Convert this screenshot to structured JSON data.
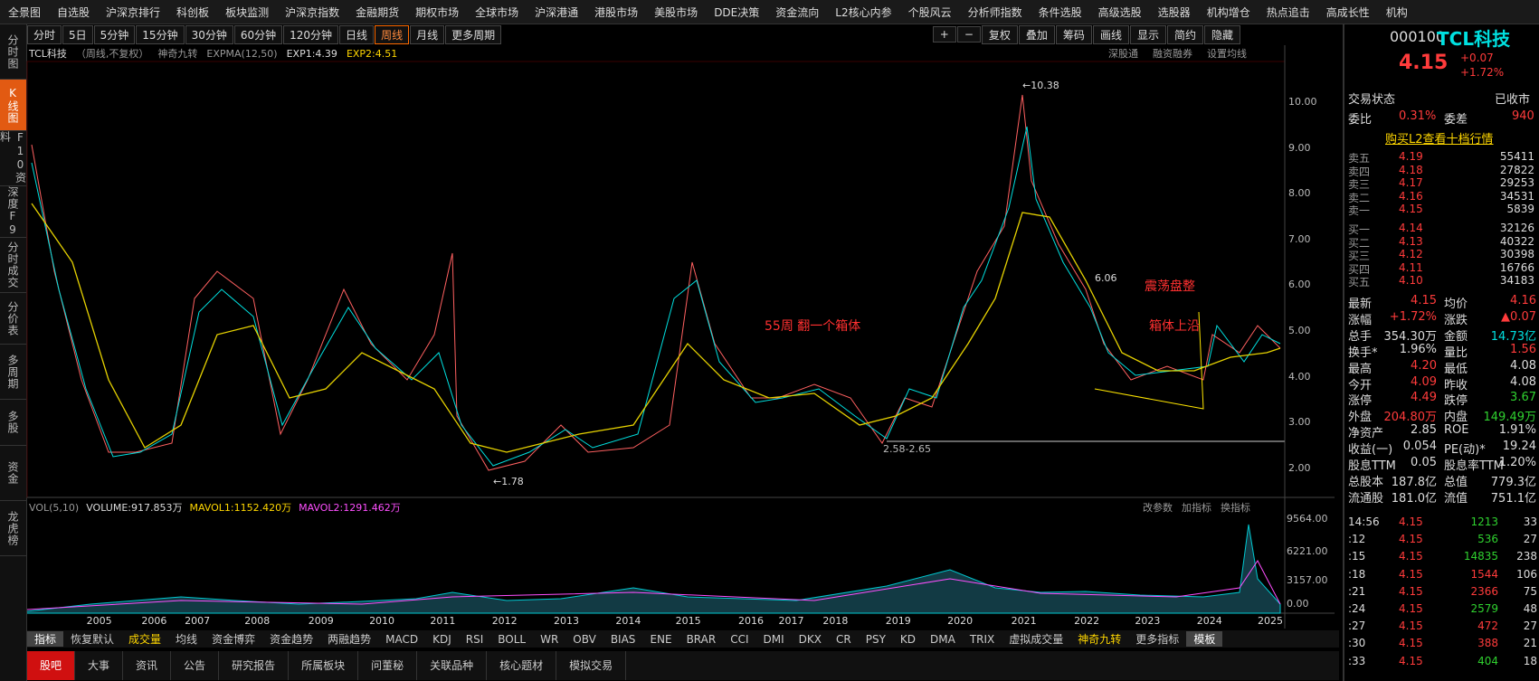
{
  "top_menu": [
    "全景图",
    "自选股",
    "沪深京排行",
    "科创板",
    "板块监测",
    "沪深京指数",
    "金融期货",
    "期权市场",
    "全球市场",
    "沪深港通",
    "港股市场",
    "美股市场",
    "DDE决策",
    "资金流向",
    "L2核心内参",
    "个股风云",
    "分析师指数",
    "条件选股",
    "高级选股",
    "选股器",
    "机构增仓",
    "热点追击",
    "高成长性",
    "机构"
  ],
  "left_tabs": [
    "分时图",
    "K线图",
    "F10资料",
    "深度F9",
    "分时成交",
    "分价表",
    "多周期",
    "多股",
    "资金",
    "龙虎榜"
  ],
  "period_bar": [
    "分时",
    "5日",
    "5分钟",
    "15分钟",
    "30分钟",
    "60分钟",
    "120分钟",
    "日线",
    "周线",
    "月线",
    "更多周期"
  ],
  "toolbar": [
    "+",
    "−",
    "复权",
    "叠加",
    "筹码",
    "画线",
    "显示",
    "简约",
    "隐藏"
  ],
  "chart_header": {
    "name": "TCL科技",
    "mode": "（周线,不复权）",
    "indicator": "神奇九转",
    "expma": "EXPMA(12,50)",
    "exp1": "EXP1:4.39",
    "exp2": "EXP2:4.51",
    "links": [
      "深股通",
      "融资融券",
      "设置均线"
    ]
  },
  "price_axis": [
    "10.00",
    "9.00",
    "8.00",
    "7.00",
    "6.00",
    "5.00",
    "4.00",
    "3.00",
    "2.00"
  ],
  "annotations": {
    "high": "←10.38",
    "low": "←1.78",
    "range": "2.58-2.65",
    "note1": "55周 翻一个箱体",
    "note2": "箱体上沿",
    "note3": "震荡盘整",
    "mid": "6.06"
  },
  "volume_header": {
    "name": "VOL(5,10)",
    "volume": "VOLUME:917.853万",
    "mavol1": "MAVOL1:1152.420万",
    "mavol2": "MAVOL2:1291.462万",
    "links": [
      "改参数",
      "加指标",
      "换指标"
    ]
  },
  "volume_axis": [
    "9564.00",
    "6221.00",
    "3157.00",
    "0.00"
  ],
  "years": [
    "2005",
    "2006",
    "2007",
    "2008",
    "2009",
    "2010",
    "2011",
    "2012",
    "2013",
    "2014",
    "2015",
    "2016",
    "2017",
    "2018",
    "2019",
    "2020",
    "2021",
    "2022",
    "2023",
    "2024",
    "2025"
  ],
  "indicator_tabs": [
    "指标",
    "恢复默认",
    "成交量",
    "均线",
    "资金博弈",
    "资金趋势",
    "两融趋势",
    "MACD",
    "KDJ",
    "RSI",
    "BOLL",
    "WR",
    "OBV",
    "BIAS",
    "ENE",
    "BRAR",
    "CCI",
    "DMI",
    "DKX",
    "CR",
    "PSY",
    "KD",
    "DMA",
    "TRIX",
    "虚拟成交量",
    "神奇九转",
    "更多指标",
    "模板"
  ],
  "bottom_tabs": [
    "股吧",
    "大事",
    "资讯",
    "公告",
    "研究报告",
    "所属板块",
    "问董秘",
    "关联品种",
    "核心题材",
    "模拟交易"
  ],
  "quote": {
    "code": "000100",
    "name": "TCL科技",
    "price": "4.15",
    "change": "+0.07",
    "pct": "+1.72%",
    "status": [
      "交易状态",
      "已收市"
    ],
    "ratio": [
      "委比",
      "0.31%",
      "委差",
      "940"
    ],
    "l2_link": "购买L2查看十档行情",
    "asks": [
      [
        "卖五",
        "4.19",
        "55411"
      ],
      [
        "卖四",
        "4.18",
        "27822"
      ],
      [
        "卖三",
        "4.17",
        "29253"
      ],
      [
        "卖二",
        "4.16",
        "34531"
      ],
      [
        "卖一",
        "4.15",
        "5839"
      ]
    ],
    "bids": [
      [
        "买一",
        "4.14",
        "32126"
      ],
      [
        "买二",
        "4.13",
        "40322"
      ],
      [
        "买三",
        "4.12",
        "30398"
      ],
      [
        "买四",
        "4.11",
        "16766"
      ],
      [
        "买五",
        "4.10",
        "34183"
      ]
    ],
    "stats": [
      [
        "最新",
        "4.15",
        "均价",
        "4.16"
      ],
      [
        "涨幅",
        "+1.72%",
        "涨跌",
        "▲0.07"
      ],
      [
        "总手",
        "354.30万",
        "金额",
        "14.73亿"
      ],
      [
        "换手*",
        "1.96%",
        "量比",
        "1.56"
      ],
      [
        "最高",
        "4.20",
        "最低",
        "4.08"
      ],
      [
        "今开",
        "4.09",
        "昨收",
        "4.08"
      ],
      [
        "涨停",
        "4.49",
        "跌停",
        "3.67"
      ],
      [
        "外盘",
        "204.80万",
        "内盘",
        "149.49万"
      ],
      [
        "净资产",
        "2.85",
        "ROE",
        "1.91%"
      ],
      [
        "收益(一)",
        "0.054",
        "PE(动)*",
        "19.24"
      ],
      [
        "股息TTM",
        "0.05",
        "股息率TTM",
        "1.20%"
      ],
      [
        "总股本",
        "187.8亿",
        "总值",
        "779.3亿"
      ],
      [
        "流通股",
        "181.0亿",
        "流值",
        "751.1亿"
      ]
    ],
    "trades": [
      [
        "14:56",
        "4.15",
        "1213",
        "33"
      ],
      [
        ":12",
        "4.15",
        "536",
        "27"
      ],
      [
        ":15",
        "4.15",
        "14835",
        "238"
      ],
      [
        ":18",
        "4.15",
        "1544",
        "106"
      ],
      [
        ":21",
        "4.15",
        "2366",
        "75"
      ],
      [
        ":24",
        "4.15",
        "2579",
        "48"
      ],
      [
        ":27",
        "4.15",
        "472",
        "27"
      ],
      [
        ":30",
        "4.15",
        "388",
        "21"
      ],
      [
        ":33",
        "4.15",
        "404",
        "18"
      ]
    ]
  }
}
